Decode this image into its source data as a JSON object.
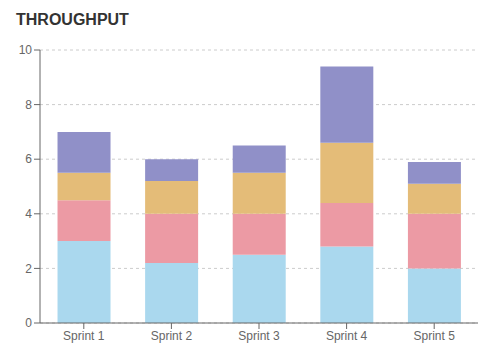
{
  "chart_data": {
    "type": "bar",
    "title": "THROUGHPUT",
    "categories": [
      "Sprint 1",
      "Sprint 2",
      "Sprint 3",
      "Sprint 4",
      "Sprint 5"
    ],
    "series": [
      {
        "color": "#aad8ee",
        "values": [
          3.0,
          2.2,
          2.5,
          2.8,
          2.0
        ]
      },
      {
        "color": "#ec9aa4",
        "values": [
          1.5,
          1.8,
          1.5,
          1.6,
          2.0
        ]
      },
      {
        "color": "#e4bc78",
        "values": [
          1.0,
          1.2,
          1.5,
          2.2,
          1.1
        ]
      },
      {
        "color": "#9090c8",
        "values": [
          1.5,
          0.8,
          1.0,
          2.8,
          0.8
        ]
      }
    ],
    "stacked": true,
    "ylim": [
      0,
      10
    ],
    "yticks": [
      0,
      2,
      4,
      6,
      8,
      10
    ],
    "grid": true
  }
}
